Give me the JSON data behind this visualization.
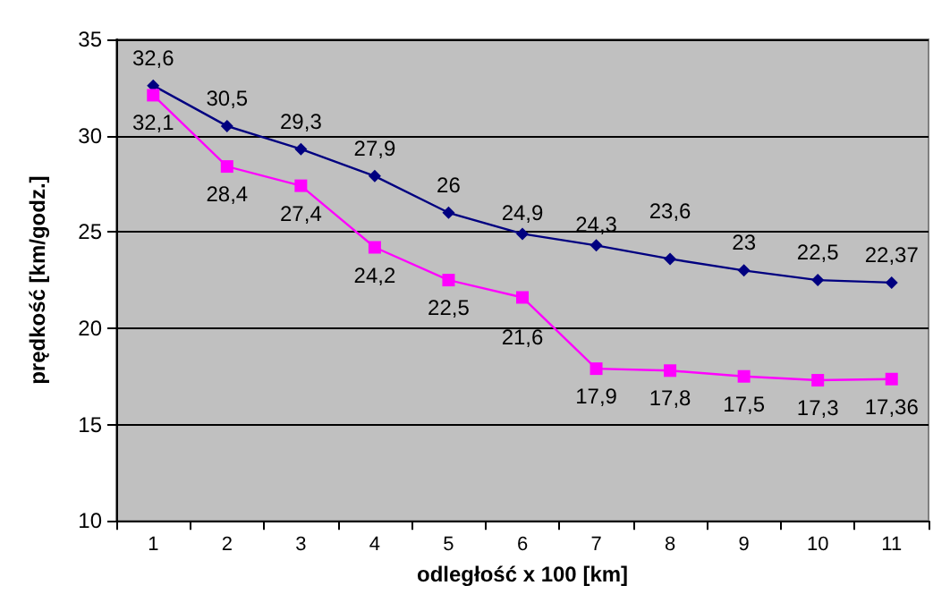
{
  "chart_data": {
    "type": "line",
    "xlabel": "odległość x 100 [km]",
    "ylabel": "prędkość [km/godz.]",
    "categories": [
      "1",
      "2",
      "3",
      "4",
      "5",
      "6",
      "7",
      "8",
      "9",
      "10",
      "11"
    ],
    "series": [
      {
        "color": "#000080",
        "marker": "diamond",
        "values": [
          32.6,
          30.5,
          29.3,
          27.9,
          26,
          24.9,
          24.3,
          23.6,
          23,
          22.5,
          22.37
        ],
        "value_labels": [
          "32,6",
          "30,5",
          "29,3",
          "27,9",
          "26",
          "24,9",
          "24,3",
          "23,6",
          "23",
          "22,5",
          "22,37"
        ]
      },
      {
        "color": "#ff00ff",
        "marker": "square",
        "values": [
          32.1,
          28.4,
          27.4,
          24.2,
          22.5,
          21.6,
          17.9,
          17.8,
          17.5,
          17.3,
          17.36
        ],
        "value_labels": [
          "32,1",
          "28,4",
          "27,4",
          "24,2",
          "22,5",
          "21,6",
          "17,9",
          "17,8",
          "17,5",
          "17,3",
          "17,36"
        ]
      }
    ],
    "ylim": [
      10,
      35
    ],
    "yticks": [
      10,
      15,
      20,
      25,
      30,
      35
    ],
    "grid": "y",
    "line_style": "solid"
  }
}
